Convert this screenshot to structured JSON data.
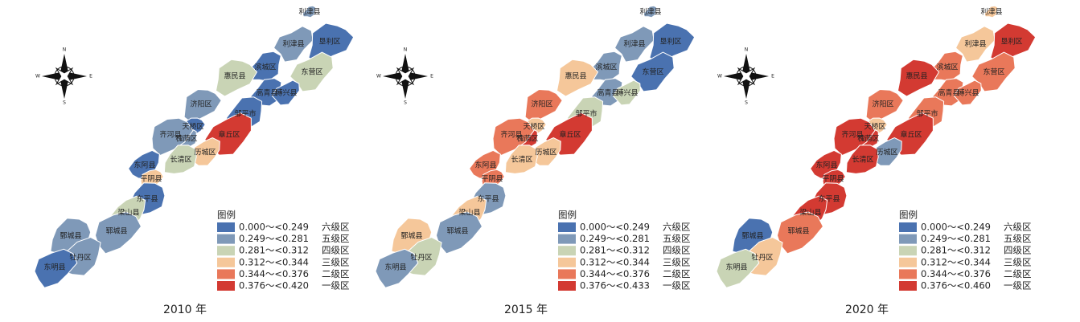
{
  "compass": {
    "n": "N",
    "s": "S",
    "e": "E",
    "w": "W"
  },
  "legend_title": "图例",
  "levels": [
    {
      "level": "六级区",
      "color": "#4a72b0"
    },
    {
      "level": "五级区",
      "color": "#7f99b8"
    },
    {
      "level": "四级区",
      "color": "#c9d4b5"
    },
    {
      "level": "三级区",
      "color": "#f5c79a"
    },
    {
      "level": "二级区",
      "color": "#e9785a"
    },
    {
      "level": "一级区",
      "color": "#d33a32"
    }
  ],
  "panels": [
    {
      "caption": "2010 年",
      "ranges": [
        "0.000～<0.249",
        "0.249～<0.281",
        "0.281～<0.312",
        "0.312～<0.344",
        "0.344～<0.376",
        "0.376～<0.420"
      ],
      "counties": [
        {
          "name": "利津县",
          "color": "#7f99b8"
        },
        {
          "name": "利津县",
          "color": "#7f99b8"
        },
        {
          "name": "垦利区",
          "color": "#4a72b0"
        },
        {
          "name": "滨城区",
          "color": "#4a72b0"
        },
        {
          "name": "东营区",
          "color": "#c9d4b5"
        },
        {
          "name": "惠民县",
          "color": "#c9d4b5"
        },
        {
          "name": "高青县",
          "color": "#4a72b0"
        },
        {
          "name": "博兴县",
          "color": "#4a72b0"
        },
        {
          "name": "济阳区",
          "color": "#7f99b8"
        },
        {
          "name": "邹平市",
          "color": "#4a72b0"
        },
        {
          "name": "章丘区",
          "color": "#d33a32"
        },
        {
          "name": "天桥区",
          "color": "#4a72b0"
        },
        {
          "name": "槐荫区",
          "color": "#7f99b8"
        },
        {
          "name": "历城区",
          "color": "#f5c79a"
        },
        {
          "name": "齐河县",
          "color": "#7f99b8"
        },
        {
          "name": "长清区",
          "color": "#c9d4b5"
        },
        {
          "name": "东阿县",
          "color": "#4a72b0"
        },
        {
          "name": "平阴县",
          "color": "#f5c79a"
        },
        {
          "name": "东平县",
          "color": "#4a72b0"
        },
        {
          "name": "梁山县",
          "color": "#c9d4b5"
        },
        {
          "name": "郓城县",
          "color": "#7f99b8"
        },
        {
          "name": "鄄城县",
          "color": "#7f99b8"
        },
        {
          "name": "牡丹区",
          "color": "#7f99b8"
        },
        {
          "name": "东明县",
          "color": "#4a72b0"
        }
      ]
    },
    {
      "caption": "2015 年",
      "ranges": [
        "0.000～<0.249",
        "0.249～<0.281",
        "0.281～<0.312",
        "0.312～<0.344",
        "0.344～<0.376",
        "0.376～<0.433"
      ],
      "counties": [
        {
          "name": "利津县",
          "color": "#7f99b8"
        },
        {
          "name": "利津县",
          "color": "#7f99b8"
        },
        {
          "name": "垦利区",
          "color": "#4a72b0"
        },
        {
          "name": "滨城区",
          "color": "#7f99b8"
        },
        {
          "name": "东营区",
          "color": "#4a72b0"
        },
        {
          "name": "惠民县",
          "color": "#f5c79a"
        },
        {
          "name": "高青县",
          "color": "#7f99b8"
        },
        {
          "name": "博兴县",
          "color": "#c9d4b5"
        },
        {
          "name": "济阳区",
          "color": "#e9785a"
        },
        {
          "name": "邹平市",
          "color": "#c9d4b5"
        },
        {
          "name": "章丘区",
          "color": "#d33a32"
        },
        {
          "name": "天桥区",
          "color": "#f5c79a"
        },
        {
          "name": "槐荫区",
          "color": "#d33a32"
        },
        {
          "name": "历城区",
          "color": "#f5c79a"
        },
        {
          "name": "齐河县",
          "color": "#e9785a"
        },
        {
          "name": "长清区",
          "color": "#f5c79a"
        },
        {
          "name": "东阿县",
          "color": "#e9785a"
        },
        {
          "name": "平阴县",
          "color": "#e9785a"
        },
        {
          "name": "东平县",
          "color": "#7f99b8"
        },
        {
          "name": "梁山县",
          "color": "#f5c79a"
        },
        {
          "name": "郓城县",
          "color": "#7f99b8"
        },
        {
          "name": "鄄城县",
          "color": "#f5c79a"
        },
        {
          "name": "牡丹区",
          "color": "#c9d4b5"
        },
        {
          "name": "东明县",
          "color": "#7f99b8"
        }
      ]
    },
    {
      "caption": "2020 年",
      "ranges": [
        "0.000～<0.249",
        "0.249～<0.281",
        "0.281～<0.312",
        "0.312～<0.344",
        "0.344～<0.376",
        "0.376～<0.460"
      ],
      "counties": [
        {
          "name": "利津县",
          "color": "#f5c79a"
        },
        {
          "name": "利津县",
          "color": "#f5c79a"
        },
        {
          "name": "垦利区",
          "color": "#d33a32"
        },
        {
          "name": "滨城区",
          "color": "#e9785a"
        },
        {
          "name": "东营区",
          "color": "#e9785a"
        },
        {
          "name": "惠民县",
          "color": "#d33a32"
        },
        {
          "name": "高青县",
          "color": "#e9785a"
        },
        {
          "name": "博兴县",
          "color": "#e9785a"
        },
        {
          "name": "济阳区",
          "color": "#e9785a"
        },
        {
          "name": "邹平市",
          "color": "#e9785a"
        },
        {
          "name": "章丘区",
          "color": "#d33a32"
        },
        {
          "name": "天桥区",
          "color": "#f5c79a"
        },
        {
          "name": "槐荫区",
          "color": "#d33a32"
        },
        {
          "name": "历城区",
          "color": "#7f99b8"
        },
        {
          "name": "齐河县",
          "color": "#d33a32"
        },
        {
          "name": "长清区",
          "color": "#d33a32"
        },
        {
          "name": "东阿县",
          "color": "#d33a32"
        },
        {
          "name": "平阴县",
          "color": "#d33a32"
        },
        {
          "name": "东平县",
          "color": "#d33a32"
        },
        {
          "name": "梁山县",
          "color": "#d33a32"
        },
        {
          "name": "郓城县",
          "color": "#e9785a"
        },
        {
          "name": "鄄城县",
          "color": "#4a72b0"
        },
        {
          "name": "牡丹区",
          "color": "#f5c79a"
        },
        {
          "name": "东明县",
          "color": "#c9d4b5"
        }
      ]
    }
  ]
}
